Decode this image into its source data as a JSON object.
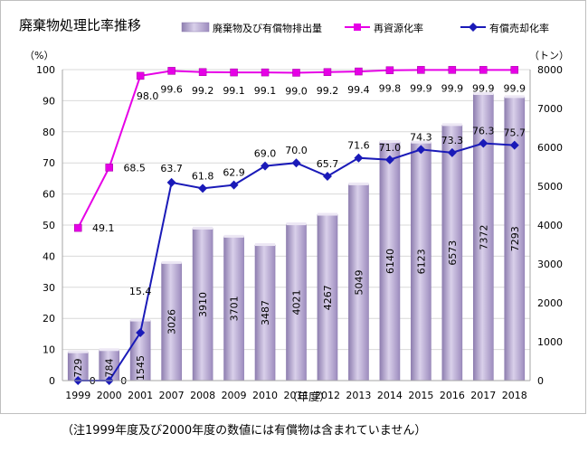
{
  "chart_data": {
    "type": "bar",
    "title": "廃棄物処理比率推移",
    "xlabel": "（年度）",
    "ylabel_left": "（%）",
    "ylabel_right": "（トン）",
    "ylim_left": [
      0,
      100
    ],
    "ylim_right": [
      0,
      8000
    ],
    "yticks_left": [
      "0",
      "10",
      "20",
      "30",
      "40",
      "50",
      "60",
      "70",
      "80",
      "90",
      "100"
    ],
    "yticks_right": [
      "0",
      "1000",
      "2000",
      "3000",
      "4000",
      "5000",
      "6000",
      "7000",
      "8000"
    ],
    "categories": [
      "1999",
      "2000",
      "2001",
      "2007",
      "2008",
      "2009",
      "2010",
      "2011",
      "2012",
      "2013",
      "2014",
      "2015",
      "2016",
      "2017",
      "2018"
    ],
    "legend_position": "top",
    "series": [
      {
        "name": "廃棄物及び有償物排出量",
        "kind": "bar",
        "axis": "right",
        "color": "#b3a2c7",
        "values": [
          729,
          784,
          1545,
          3026,
          3910,
          3701,
          3487,
          4021,
          4267,
          5049,
          6140,
          6123,
          6573,
          7372,
          7293
        ],
        "labels": [
          "729",
          "784",
          "1545",
          "3026",
          "3910",
          "3701",
          "3487",
          "4021",
          "4267",
          "5049",
          "6140",
          "6123",
          "6573",
          "7372",
          "7293"
        ]
      },
      {
        "name": "再資源化率",
        "kind": "line",
        "axis": "left",
        "color": "#e600e6",
        "values": [
          49.1,
          68.5,
          98.0,
          99.6,
          99.2,
          99.1,
          99.1,
          99.0,
          99.2,
          99.4,
          99.8,
          99.9,
          99.9,
          99.9,
          99.9
        ],
        "labels": [
          "49.1",
          "68.5",
          "98.0",
          "99.6",
          "99.2",
          "99.1",
          "99.1",
          "99.0",
          "99.2",
          "99.4",
          "99.8",
          "99.9",
          "99.9",
          "99.9",
          "99.9"
        ]
      },
      {
        "name": "有償売却化率",
        "kind": "line",
        "axis": "left",
        "color": "#1a1ab8",
        "values": [
          0,
          0,
          15.4,
          63.7,
          61.8,
          62.9,
          69.0,
          70.0,
          65.7,
          71.6,
          71.0,
          74.3,
          73.3,
          76.3,
          75.7
        ],
        "labels": [
          "0",
          "0",
          "15.4",
          "63.7",
          "61.8",
          "62.9",
          "69.0",
          "70.0",
          "65.7",
          "71.6",
          "71.0",
          "74.3",
          "73.3",
          "76.3",
          "75.7"
        ]
      }
    ]
  },
  "footnote": "（注1999年度及び2000年度の数値には有償物は含まれていません）"
}
